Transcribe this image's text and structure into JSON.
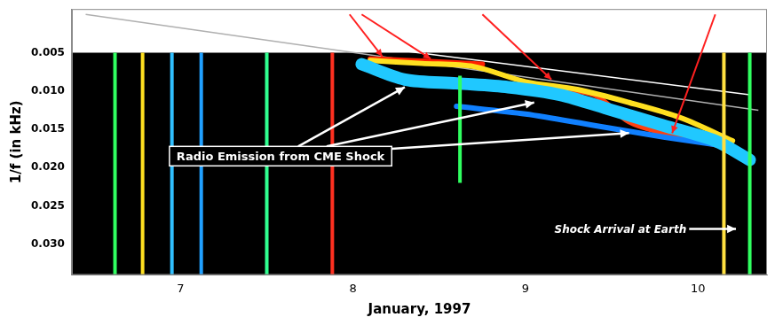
{
  "chart_data": {
    "type": "line",
    "x_label": "January, 1997",
    "y_label": "1/f (in kHz)",
    "xlim": [
      6.37,
      10.4
    ],
    "xticks": [
      7,
      8,
      9,
      10
    ],
    "ylim": [
      0.034,
      -0.0007
    ],
    "yticks": [
      0.005,
      {
        "value": 0.01,
        "label": "0.010"
      },
      0.015,
      {
        "value": 0.02,
        "label": "0.020"
      },
      0.025,
      {
        "value": 0.03,
        "label": "0.030"
      }
    ],
    "grid": false,
    "bursts": [
      {
        "x": 6.62,
        "y": [
          0.005,
          0.034
        ],
        "color": "#30ff60"
      },
      {
        "x": 6.78,
        "y": [
          0.005,
          0.034
        ],
        "color": "#ffe020"
      },
      {
        "x": 6.95,
        "y": [
          0.005,
          0.034
        ],
        "color": "#30c0ff"
      },
      {
        "x": 7.12,
        "y": [
          0.005,
          0.034
        ],
        "color": "#20a0ff"
      },
      {
        "x": 7.5,
        "y": [
          0.005,
          0.034
        ],
        "color": "#30ff90"
      },
      {
        "x": 7.88,
        "y": [
          0.005,
          0.034
        ],
        "color": "#ff3020"
      },
      {
        "x": 8.62,
        "y": [
          0.008,
          0.022
        ],
        "color": "#30ff60"
      },
      {
        "x": 10.15,
        "y": [
          0.005,
          0.034
        ],
        "color": "#ffe040"
      },
      {
        "x": 10.3,
        "y": [
          0.005,
          0.034
        ],
        "color": "#30ff60"
      }
    ],
    "series": [
      {
        "color": "#20c8ff",
        "x": [
          8.05,
          8.3,
          8.6,
          8.9,
          9.2,
          9.5,
          9.8,
          10.1,
          10.3
        ],
        "values": [
          0.0065,
          0.0085,
          0.009,
          0.0095,
          0.0105,
          0.0125,
          0.0145,
          0.0165,
          0.019
        ]
      },
      {
        "color": "#1080ff",
        "x": [
          8.6,
          9.0,
          9.4,
          9.8,
          10.1
        ],
        "values": [
          0.012,
          0.013,
          0.0145,
          0.016,
          0.017
        ]
      },
      {
        "color": "#ffe020",
        "x": [
          8.1,
          8.4,
          8.7,
          9.0,
          9.3,
          9.6,
          9.9,
          10.2
        ],
        "values": [
          0.006,
          0.0064,
          0.0068,
          0.0088,
          0.0098,
          0.0115,
          0.0135,
          0.0165
        ]
      },
      {
        "color": "#ff2000",
        "x": [
          8.1,
          8.3,
          8.5,
          8.75
        ],
        "values": [
          0.0058,
          0.006,
          0.0062,
          0.0065
        ]
      },
      {
        "color": "#ff4010",
        "x": [
          9.0,
          9.2,
          9.4,
          9.6,
          9.8,
          10.0,
          10.2
        ],
        "values": [
          0.0092,
          0.0098,
          0.0105,
          0.014,
          0.0155,
          0.0165,
          0.0175
        ]
      }
    ],
    "fit_lines": [
      {
        "x": [
          6.45,
          10.3
        ],
        "y": [
          -0.0005,
          0.0105
        ],
        "color": "#ffffff"
      },
      {
        "x": [
          6.45,
          10.35
        ],
        "y": [
          0.0,
          0.0125
        ],
        "color": "#b0b0b0"
      }
    ],
    "annotations": [
      {
        "text": "Radio Emission from CME Shock",
        "x": 7.58,
        "y": 0.0185,
        "color": "#ffffff",
        "arrows": [
          {
            "to": [
              8.3,
              0.0095
            ]
          },
          {
            "to": [
              9.05,
              0.0115
            ]
          },
          {
            "to": [
              9.6,
              0.0155
            ]
          }
        ]
      },
      {
        "text": "Shock Arrival at Earth",
        "x": 9.55,
        "y": 0.028,
        "color": "#ffffff",
        "arrows": [
          {
            "to": [
              10.22,
              0.028
            ]
          }
        ]
      }
    ],
    "pointers": [
      {
        "from": [
          7.98,
          0.0
        ],
        "to": [
          8.17,
          0.0055
        ],
        "color": "#ff2020"
      },
      {
        "from": [
          8.05,
          0.0
        ],
        "to": [
          8.45,
          0.0058
        ],
        "color": "#ff2020"
      },
      {
        "from": [
          8.75,
          0.0
        ],
        "to": [
          9.15,
          0.0085
        ],
        "color": "#ff2020"
      },
      {
        "from": [
          10.1,
          0.0
        ],
        "to": [
          9.85,
          0.0155
        ],
        "color": "#ff2020"
      }
    ]
  }
}
